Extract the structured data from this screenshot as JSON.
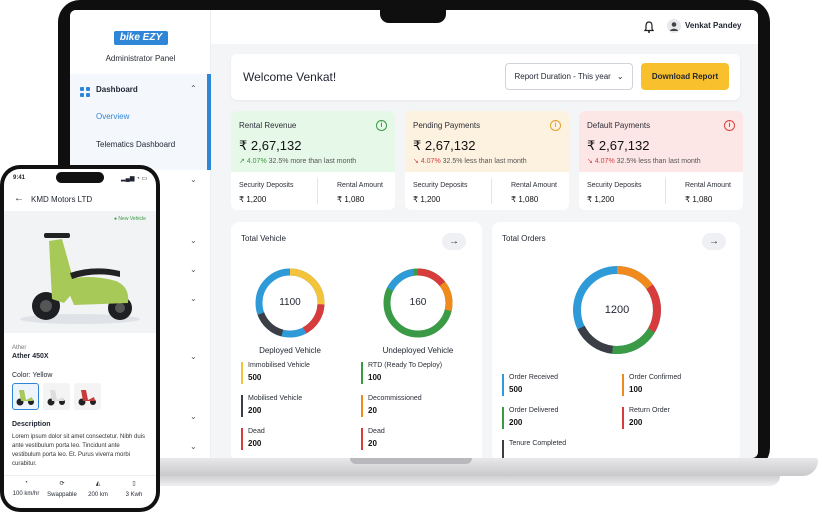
{
  "brand": {
    "logo_text": "bike EZY",
    "panel_title": "Administrator Panel",
    "color_primary": "#2f86d6",
    "color_accent": "#f8c02d"
  },
  "sidebar": {
    "items": [
      {
        "label": "Dashboard",
        "icon": "grid-icon"
      },
      {
        "label": "Overview"
      },
      {
        "label": "Telematics Dashboard"
      }
    ]
  },
  "topbar": {
    "user_name": "Venkat Pandey"
  },
  "welcome": {
    "title": "Welcome Venkat!",
    "duration_label": "Report Duration - This year",
    "download_label": "Download Report"
  },
  "stats": [
    {
      "title": "Rental Revenue",
      "value": "₹ 2,67,132",
      "pct": "4.07%",
      "delta": "32.5% more than last month",
      "trend": "up",
      "bg": "#e6f8e8",
      "accent": "#3a9a45",
      "left_label": "Security Deposits",
      "left_value": "₹ 1,200",
      "right_label": "Rental Amount",
      "right_value": "₹ 1,080"
    },
    {
      "title": "Pending Payments",
      "value": "₹ 2,67,132",
      "pct": "4.07%",
      "delta": "32.5% less than last month",
      "trend": "down",
      "bg": "#fdf1df",
      "accent": "#e3a129",
      "left_label": "Security Deposits",
      "left_value": "₹ 1,200",
      "right_label": "Rental Amount",
      "right_value": "₹ 1,080"
    },
    {
      "title": "Default Payments",
      "value": "₹ 2,67,132",
      "pct": "4.07%",
      "delta": "32.5% less than last month",
      "trend": "down",
      "bg": "#fde6e6",
      "accent": "#d64040",
      "left_label": "Security Deposits",
      "left_value": "₹ 1,200",
      "right_label": "Rental Amount",
      "right_value": "₹ 1,080"
    }
  ],
  "vehicles": {
    "title": "Total Vehicle",
    "deployed": {
      "label": "Deployed Vehicle",
      "center": "1100"
    },
    "undeployed": {
      "label": "Undeployed Vehicle",
      "center": "160"
    },
    "legend": [
      {
        "label": "Immobilised Vehicle",
        "value": "500",
        "color": "#f3c33b"
      },
      {
        "label": "RTD (Ready To Deploy)",
        "value": "100",
        "color": "#3a9a45"
      },
      {
        "label": "Mobilised Vehicle",
        "value": "200",
        "color": "#3b3f45"
      },
      {
        "label": "Decommissioned",
        "value": "20",
        "color": "#f08a1c"
      },
      {
        "label": "Dead",
        "value": "200",
        "color": "#d83b3b"
      },
      {
        "label": "Dead",
        "value": "20",
        "color": "#d83b3b"
      }
    ]
  },
  "orders": {
    "title": "Total Orders",
    "center": "1200",
    "legend": [
      {
        "label": "Order Received",
        "value": "500",
        "color": "#2e9ad8"
      },
      {
        "label": "Order Confirmed",
        "value": "100",
        "color": "#f08a1c"
      },
      {
        "label": "Order Delivered",
        "value": "200",
        "color": "#3a9a45"
      },
      {
        "label": "Return Order",
        "value": "200",
        "color": "#d83b3b"
      },
      {
        "label": "Tenure Completed",
        "value": "",
        "color": "#3b3f45"
      }
    ]
  },
  "phone": {
    "time": "9:41",
    "header": "KMD Motors LTD",
    "badge": "New Vehicle",
    "brand": "Ather",
    "model": "Ather 450X",
    "color_label": "Color: Yellow",
    "desc_title": "Description",
    "desc": "Lorem ipsum dolor sit amet consectetur. Nibh duis ante vestibulum porta leo. Tincidunt ante vestibulum porta leo. Et. Purus viverra morbi curabitur.",
    "specs": [
      {
        "icon": "speedometer-icon",
        "label": "100 km/hr"
      },
      {
        "icon": "swap-icon",
        "label": "Swappable"
      },
      {
        "icon": "range-icon",
        "label": "200 km"
      },
      {
        "icon": "battery-icon",
        "label": "3 Kwh"
      }
    ]
  }
}
